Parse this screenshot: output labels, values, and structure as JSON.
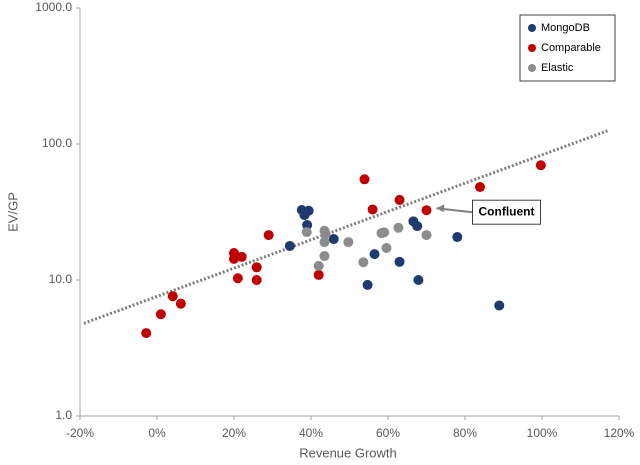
{
  "chart_data": {
    "type": "scatter",
    "x_label": "Revenue Growth",
    "y_label": "EV/GP",
    "xlim": [
      -20,
      120
    ],
    "xticks": [
      {
        "value": -20,
        "label": "-20%"
      },
      {
        "value": 0,
        "label": "0%"
      },
      {
        "value": 20,
        "label": "20%"
      },
      {
        "value": 40,
        "label": "40%"
      },
      {
        "value": 60,
        "label": "60%"
      },
      {
        "value": 80,
        "label": "80%"
      },
      {
        "value": 100,
        "label": "100%"
      },
      {
        "value": 120,
        "label": "120%"
      }
    ],
    "ylim": [
      1,
      1000
    ],
    "yticks": [
      {
        "value": 1,
        "label": "1.0"
      },
      {
        "value": 10,
        "label": "10.0"
      },
      {
        "value": 100,
        "label": "100.0"
      },
      {
        "value": 1000,
        "label": "1000.0"
      }
    ],
    "y_log_scale": true,
    "grid": false,
    "legend": "upper right",
    "series": [
      {
        "name": "MongoDB",
        "color": "#1f3a6e",
        "x": [
          37.6,
          38.3,
          39.4,
          39,
          34.5,
          45.9,
          56.5,
          54.7,
          63,
          66.6,
          67.6,
          67.9,
          78,
          88.9
        ],
        "values": [
          32.7,
          30,
          32.3,
          25.4,
          17.8,
          20,
          15.5,
          9.2,
          13.6,
          27,
          24.9,
          10,
          20.7,
          6.5
        ]
      },
      {
        "name": "Comparable",
        "color": "#c00000",
        "x": [
          -2.8,
          1,
          4.1,
          6.2,
          20,
          20,
          22,
          21,
          25.9,
          25.9,
          29,
          42,
          53.9,
          56,
          63,
          70,
          83.9,
          99.7
        ],
        "values": [
          4.07,
          5.6,
          7.6,
          6.7,
          15.8,
          14.3,
          14.8,
          10.3,
          12.4,
          10,
          21.4,
          10.9,
          55,
          33,
          38.8,
          32.6,
          48.3,
          69.8
        ]
      },
      {
        "name": "Elastic",
        "color": "#8c8c8c",
        "x": [
          38.9,
          42,
          43.5,
          43.5,
          43.8,
          43.5,
          49.7,
          53.6,
          58.3,
          59,
          59.6,
          62.7,
          70
        ],
        "values": [
          22.5,
          12.7,
          19,
          23,
          21.8,
          15,
          19,
          13.5,
          22.1,
          22.4,
          17.2,
          24.2,
          21.4
        ]
      }
    ],
    "trendline": {
      "color": "#7f7f7f",
      "x": [
        -19,
        117
      ],
      "values": [
        4.8,
        125
      ]
    },
    "annotation": "Confluent"
  }
}
